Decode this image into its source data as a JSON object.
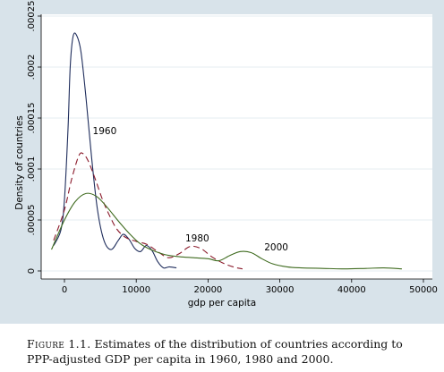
{
  "chart_data": {
    "type": "line",
    "title": "",
    "xlabel": "gdp per capita",
    "ylabel": "Density of countries",
    "xlim": [
      -3000,
      51000
    ],
    "ylim": [
      0,
      0.00025
    ],
    "x_ticks": [
      0,
      10000,
      20000,
      30000,
      40000,
      50000
    ],
    "x_tick_labels": [
      "0",
      "10000",
      "20000",
      "30000",
      "40000",
      "50000"
    ],
    "y_ticks": [
      0,
      5e-05,
      0.0001,
      0.00015,
      0.0002,
      0.00025
    ],
    "y_tick_labels": [
      "0",
      ".00005",
      ".0001",
      ".00015",
      ".0002",
      ".00025"
    ],
    "grid": true,
    "legend": "none",
    "series": [
      {
        "name": "1960",
        "color": "#1f2d5c",
        "dash": "solid",
        "points": [
          [
            -1500,
            2.5e-05
          ],
          [
            -500,
            4e-05
          ],
          [
            0,
            7e-05
          ],
          [
            500,
            0.00014
          ],
          [
            800,
            0.0002
          ],
          [
            1200,
            0.00023
          ],
          [
            1700,
            0.000231
          ],
          [
            2300,
            0.000215
          ],
          [
            3000,
            0.00017
          ],
          [
            3800,
            0.00011
          ],
          [
            4600,
            6e-05
          ],
          [
            5500,
            3e-05
          ],
          [
            6500,
            2.1e-05
          ],
          [
            7500,
            3e-05
          ],
          [
            8200,
            3.6e-05
          ],
          [
            9000,
            3.1e-05
          ],
          [
            9800,
            2.2e-05
          ],
          [
            10600,
            1.9e-05
          ],
          [
            11400,
            2.5e-05
          ],
          [
            12200,
            2e-05
          ],
          [
            13000,
            9e-06
          ],
          [
            13800,
            3e-06
          ],
          [
            14600,
            4e-06
          ],
          [
            15600,
            3e-06
          ]
        ]
      },
      {
        "name": "1980",
        "color": "#8b1a2b",
        "dash": "dashed",
        "points": [
          [
            -1500,
            3e-05
          ],
          [
            0,
            6e-05
          ],
          [
            1000,
            9e-05
          ],
          [
            2000,
            0.000113
          ],
          [
            2600,
            0.000115
          ],
          [
            3300,
            0.000108
          ],
          [
            4300,
            9e-05
          ],
          [
            5300,
            7e-05
          ],
          [
            6300,
            5.4e-05
          ],
          [
            7300,
            4.1e-05
          ],
          [
            8500,
            3.3e-05
          ],
          [
            10000,
            2.9e-05
          ],
          [
            11500,
            2.6e-05
          ],
          [
            13000,
            1.9e-05
          ],
          [
            14500,
            1.3e-05
          ],
          [
            16000,
            1.7e-05
          ],
          [
            17500,
            2.4e-05
          ],
          [
            19000,
            2.2e-05
          ],
          [
            20500,
            1.4e-05
          ],
          [
            22000,
            8e-06
          ],
          [
            23500,
            4e-06
          ],
          [
            24800,
            2e-06
          ]
        ]
      },
      {
        "name": "2000",
        "color": "#3f6b1f",
        "dash": "solid",
        "points": [
          [
            -1800,
            2.1e-05
          ],
          [
            0,
            5e-05
          ],
          [
            1500,
            6.8e-05
          ],
          [
            3000,
            7.6e-05
          ],
          [
            4500,
            7.3e-05
          ],
          [
            6000,
            6.2e-05
          ],
          [
            7500,
            4.9e-05
          ],
          [
            9000,
            3.7e-05
          ],
          [
            10500,
            2.7e-05
          ],
          [
            12000,
            2.1e-05
          ],
          [
            14000,
            1.6e-05
          ],
          [
            16000,
            1.4e-05
          ],
          [
            18000,
            1.3e-05
          ],
          [
            20000,
            1.2e-05
          ],
          [
            21500,
            1e-05
          ],
          [
            23000,
            1.5e-05
          ],
          [
            24500,
            1.9e-05
          ],
          [
            26000,
            1.8e-05
          ],
          [
            27500,
            1.2e-05
          ],
          [
            29000,
            7e-06
          ],
          [
            31000,
            4e-06
          ],
          [
            33000,
            3e-06
          ],
          [
            36000,
            2.5e-06
          ],
          [
            39000,
            2e-06
          ],
          [
            42000,
            2.5e-06
          ],
          [
            44500,
            3e-06
          ],
          [
            47000,
            2e-06
          ]
        ]
      }
    ],
    "annotations": [
      {
        "text": "1960",
        "x": 5600,
        "y": 0.000134
      },
      {
        "text": "1980",
        "x": 18500,
        "y": 2.9e-05
      },
      {
        "text": "2000",
        "x": 29500,
        "y": 2e-05
      }
    ]
  },
  "caption": {
    "label": "Figure 1.1.",
    "text": "Estimates of the distribution of countries according to PPP-adjusted GDP per capita in 1960, 1980 and 2000."
  }
}
